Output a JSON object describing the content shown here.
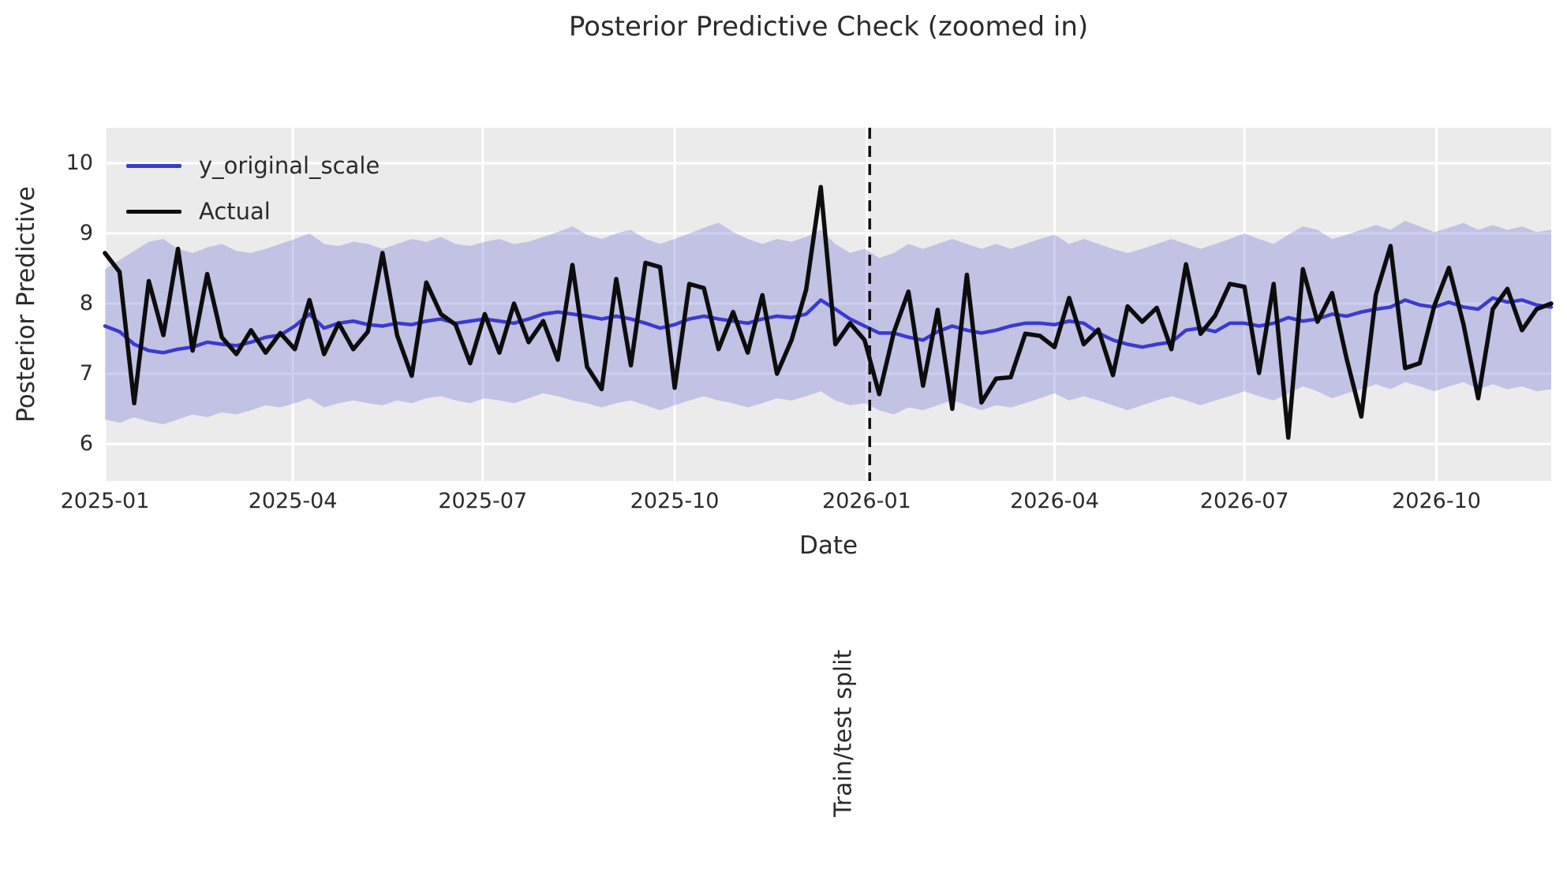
{
  "title": "Posterior Predictive Check (zoomed in)",
  "axes": {
    "xlabel": "Date",
    "ylabel": "Posterior Predictive"
  },
  "legend": {
    "mean_label": "y_original_scale",
    "actual_label": "Actual"
  },
  "annotations": {
    "split_label": "Train/test split"
  },
  "colors": {
    "figure_bg": "#ffffff",
    "axes_bg": "#ebebeb",
    "grid": "#ffffff",
    "mean_line": "#3a3ad1",
    "actual_line": "#0d0d0d",
    "band_fill": "#7276d6",
    "band_opacity": 0.35,
    "split_line": "#111111",
    "text": "#2b2b2b"
  },
  "chart_data": {
    "type": "line",
    "title": "Posterior Predictive Check (zoomed in)",
    "xlabel": "Date",
    "ylabel": "Posterior Predictive",
    "x_unit": "weeks since 2025-01-01 (weekly data)",
    "xlim_weeks": [
      0,
      99
    ],
    "ylim": [
      5.47,
      10.51
    ],
    "y_ticks": [
      6,
      7,
      8,
      9,
      10
    ],
    "x_ticks": [
      {
        "label": "2025-01",
        "week": 0
      },
      {
        "label": "2025-04",
        "week": 12.857
      },
      {
        "label": "2025-07",
        "week": 25.857
      },
      {
        "label": "2025-10",
        "week": 39.0
      },
      {
        "label": "2026-01",
        "week": 52.143
      },
      {
        "label": "2026-04",
        "week": 65.0
      },
      {
        "label": "2026-07",
        "week": 78.0
      },
      {
        "label": "2026-10",
        "week": 91.143
      }
    ],
    "split_week": 52.35,
    "grid": true,
    "legend_position": "upper left",
    "series": [
      {
        "name": "y_original_scale",
        "role": "posterior predictive mean",
        "color": "#3a3ad1",
        "values": [
          7.68,
          7.6,
          7.42,
          7.33,
          7.3,
          7.35,
          7.38,
          7.45,
          7.42,
          7.4,
          7.45,
          7.52,
          7.55,
          7.68,
          7.85,
          7.65,
          7.72,
          7.75,
          7.7,
          7.68,
          7.72,
          7.7,
          7.75,
          7.78,
          7.72,
          7.75,
          7.78,
          7.75,
          7.72,
          7.78,
          7.85,
          7.88,
          7.85,
          7.82,
          7.78,
          7.82,
          7.78,
          7.72,
          7.65,
          7.7,
          7.78,
          7.82,
          7.78,
          7.75,
          7.72,
          7.78,
          7.82,
          7.8,
          7.85,
          8.05,
          7.92,
          7.78,
          7.68,
          7.58,
          7.58,
          7.52,
          7.48,
          7.6,
          7.68,
          7.62,
          7.58,
          7.62,
          7.68,
          7.72,
          7.72,
          7.7,
          7.75,
          7.72,
          7.58,
          7.48,
          7.42,
          7.38,
          7.42,
          7.45,
          7.62,
          7.65,
          7.6,
          7.72,
          7.72,
          7.68,
          7.72,
          7.8,
          7.75,
          7.78,
          7.85,
          7.82,
          7.88,
          7.92,
          7.95,
          8.05,
          7.98,
          7.95,
          8.02,
          7.95,
          7.92,
          8.08,
          8.02,
          8.05,
          7.98,
          7.95
        ]
      },
      {
        "name": "Actual",
        "role": "observed values",
        "color": "#0d0d0d",
        "values": [
          8.72,
          8.45,
          6.58,
          8.32,
          7.55,
          8.78,
          7.33,
          8.42,
          7.52,
          7.28,
          7.62,
          7.3,
          7.58,
          7.35,
          8.05,
          7.28,
          7.72,
          7.35,
          7.6,
          8.72,
          7.55,
          6.97,
          8.3,
          7.85,
          7.7,
          7.15,
          7.85,
          7.3,
          8.0,
          7.45,
          7.75,
          7.2,
          8.55,
          7.1,
          6.78,
          8.35,
          7.12,
          8.58,
          8.52,
          6.8,
          8.28,
          8.22,
          7.35,
          7.88,
          7.3,
          8.12,
          7.0,
          7.48,
          8.2,
          9.66,
          7.42,
          7.72,
          7.48,
          6.71,
          7.59,
          8.17,
          6.83,
          7.91,
          6.5,
          8.41,
          6.59,
          6.93,
          6.95,
          7.57,
          7.54,
          7.38,
          8.08,
          7.42,
          7.63,
          6.98,
          7.96,
          7.74,
          7.94,
          7.35,
          8.56,
          7.57,
          7.83,
          8.28,
          8.24,
          7.01,
          8.28,
          6.09,
          8.49,
          7.74,
          8.15,
          7.21,
          6.39,
          8.13,
          8.82,
          7.08,
          7.15,
          7.97,
          8.51,
          7.7,
          6.65,
          7.92,
          8.21,
          7.62,
          7.92,
          8.0
        ]
      }
    ],
    "band": {
      "name": "posterior predictive interval",
      "color": "#7276d6",
      "opacity": 0.35,
      "upper": [
        8.49,
        8.62,
        8.75,
        8.88,
        8.92,
        8.78,
        8.72,
        8.8,
        8.85,
        8.75,
        8.72,
        8.78,
        8.85,
        8.92,
        9.0,
        8.85,
        8.82,
        8.88,
        8.85,
        8.78,
        8.85,
        8.92,
        8.88,
        8.95,
        8.85,
        8.82,
        8.88,
        8.92,
        8.85,
        8.88,
        8.95,
        9.02,
        9.1,
        8.98,
        8.92,
        9.0,
        9.05,
        8.92,
        8.85,
        8.92,
        9.0,
        9.08,
        9.15,
        9.02,
        8.92,
        8.85,
        8.92,
        8.88,
        8.95,
        9.05,
        8.85,
        8.72,
        8.78,
        8.65,
        8.72,
        8.85,
        8.78,
        8.85,
        8.92,
        8.85,
        8.78,
        8.85,
        8.78,
        8.85,
        8.92,
        8.98,
        8.85,
        8.92,
        8.85,
        8.78,
        8.72,
        8.78,
        8.85,
        8.92,
        8.85,
        8.78,
        8.85,
        8.92,
        9.0,
        8.92,
        8.85,
        8.98,
        9.1,
        9.05,
        8.92,
        8.98,
        9.05,
        9.12,
        9.05,
        9.18,
        9.1,
        9.02,
        9.08,
        9.15,
        9.05,
        9.12,
        9.05,
        9.1,
        9.02,
        9.05
      ],
      "lower": [
        6.35,
        6.3,
        6.38,
        6.32,
        6.28,
        6.35,
        6.42,
        6.38,
        6.45,
        6.42,
        6.48,
        6.55,
        6.52,
        6.58,
        6.65,
        6.52,
        6.58,
        6.62,
        6.58,
        6.55,
        6.62,
        6.58,
        6.65,
        6.68,
        6.62,
        6.58,
        6.65,
        6.62,
        6.58,
        6.65,
        6.72,
        6.68,
        6.62,
        6.58,
        6.52,
        6.58,
        6.62,
        6.55,
        6.48,
        6.55,
        6.62,
        6.68,
        6.62,
        6.58,
        6.52,
        6.58,
        6.65,
        6.62,
        6.68,
        6.75,
        6.62,
        6.55,
        6.58,
        6.48,
        6.42,
        6.52,
        6.48,
        6.55,
        6.62,
        6.55,
        6.48,
        6.55,
        6.52,
        6.58,
        6.65,
        6.72,
        6.62,
        6.68,
        6.62,
        6.55,
        6.48,
        6.55,
        6.62,
        6.68,
        6.62,
        6.55,
        6.62,
        6.68,
        6.75,
        6.68,
        6.62,
        6.72,
        6.82,
        6.75,
        6.65,
        6.72,
        6.78,
        6.85,
        6.78,
        6.88,
        6.82,
        6.75,
        6.82,
        6.88,
        6.78,
        6.85,
        6.78,
        6.82,
        6.75,
        6.78
      ]
    }
  }
}
